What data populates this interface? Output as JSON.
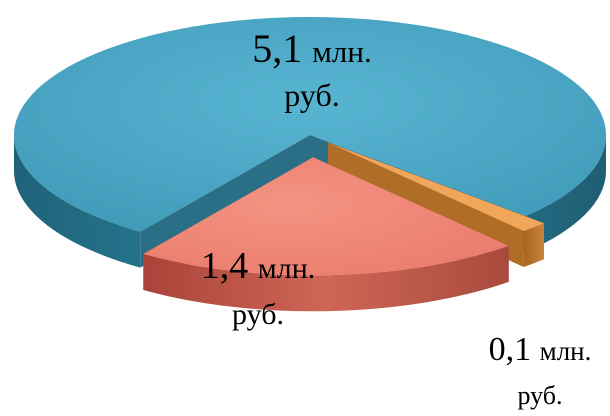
{
  "chart_data": {
    "type": "pie",
    "title": "",
    "legend": "none",
    "slices": [
      {
        "value_text": "5,1",
        "unit": "млн.",
        "unit2": "руб.",
        "value": 5.1,
        "color": "#4aa6c4"
      },
      {
        "value_text": "0,1",
        "unit": "млн.",
        "unit2": "руб.",
        "value": 0.1,
        "color": "#f2a65a"
      },
      {
        "value_text": "1,4",
        "unit": "млн.",
        "unit2": "руб.",
        "value": 1.4,
        "color": "#ee8574"
      }
    ]
  }
}
